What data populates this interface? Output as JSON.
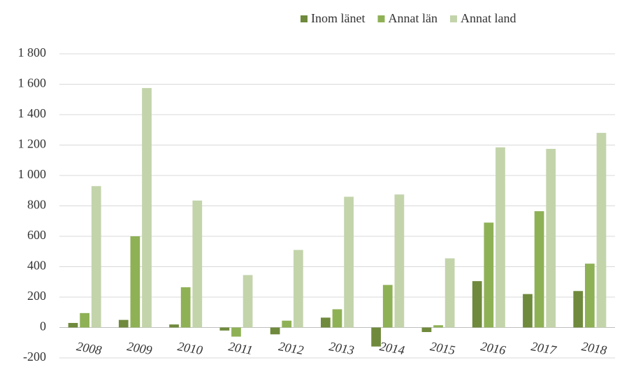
{
  "chart_data": {
    "type": "bar",
    "categories": [
      "2008",
      "2009",
      "2010",
      "2011",
      "2012",
      "2013",
      "2014",
      "2015",
      "2016",
      "2017",
      "2018"
    ],
    "series": [
      {
        "name": "Inom länet",
        "color": "#6f8a3c",
        "values": [
          30,
          50,
          20,
          -20,
          -45,
          65,
          -125,
          -30,
          305,
          220,
          240
        ]
      },
      {
        "name": "Annat län",
        "color": "#8fb156",
        "values": [
          95,
          600,
          265,
          -60,
          45,
          120,
          280,
          15,
          690,
          765,
          420
        ]
      },
      {
        "name": "Annat land",
        "color": "#c3d4ab",
        "values": [
          930,
          1575,
          835,
          345,
          510,
          860,
          875,
          455,
          1185,
          1175,
          1280
        ]
      }
    ],
    "ylim": [
      -200,
      1800
    ],
    "yticks": [
      -200,
      0,
      200,
      400,
      600,
      800,
      {
        "value": 1000,
        "label": "1 000"
      },
      {
        "value": 1200,
        "label": "1 200"
      },
      {
        "value": 1400,
        "label": "1 400"
      },
      {
        "value": 1600,
        "label": "1 600"
      },
      {
        "value": 1800,
        "label": "1 800"
      }
    ],
    "grid": true,
    "legend": "top"
  }
}
